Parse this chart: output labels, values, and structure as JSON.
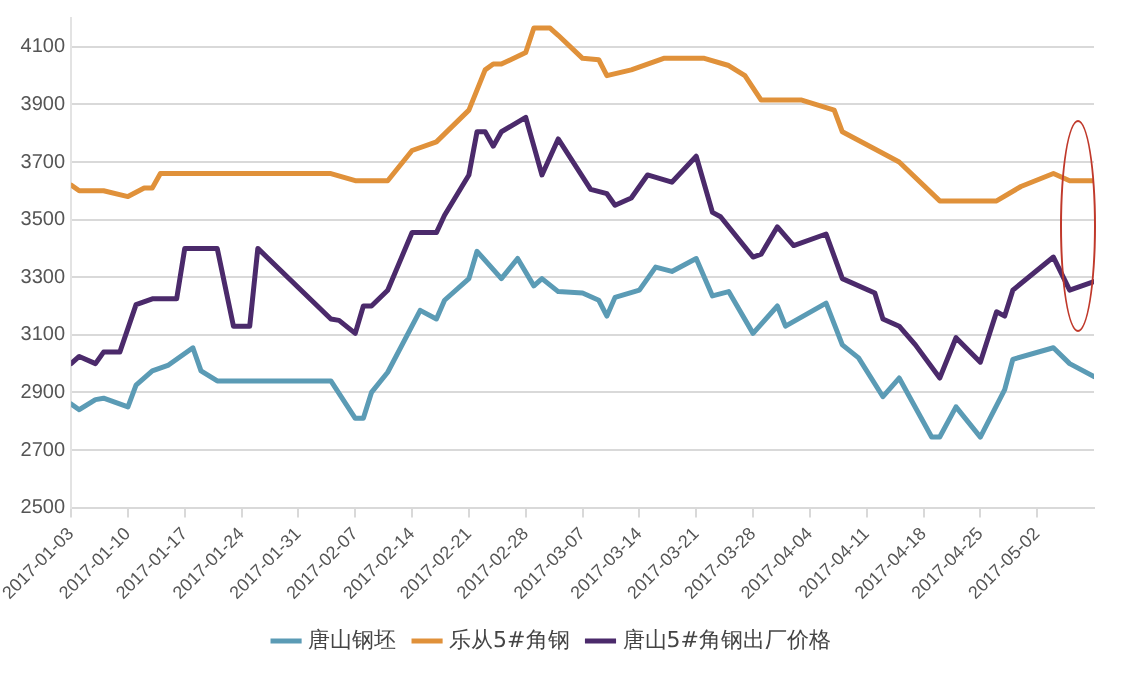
{
  "chart_data": {
    "type": "line",
    "ylim": [
      2500,
      4200
    ],
    "yticks": [
      2500,
      2700,
      2900,
      3100,
      3300,
      3500,
      3700,
      3900,
      4100
    ],
    "xlim": [
      "2017-01-03",
      "2017-05-09"
    ],
    "xticks": [
      "2017-01-03",
      "2017-01-10",
      "2017-01-17",
      "2017-01-24",
      "2017-01-31",
      "2017-02-07",
      "2017-02-14",
      "2017-02-21",
      "2017-02-28",
      "2017-03-07",
      "2017-03-14",
      "2017-03-21",
      "2017-03-28",
      "2017-04-04",
      "2017-04-11",
      "2017-04-18",
      "2017-04-25",
      "2017-05-02"
    ],
    "grid": "y",
    "legend": "bottom",
    "marker": "none",
    "line_style": "solid",
    "series": [
      {
        "name": "唐山钢坯",
        "color": "#5b9bb5",
        "x": [
          "2017-01-03",
          "2017-01-04",
          "2017-01-06",
          "2017-01-07",
          "2017-01-10",
          "2017-01-11",
          "2017-01-13",
          "2017-01-15",
          "2017-01-18",
          "2017-01-19",
          "2017-01-21",
          "2017-02-04",
          "2017-02-07",
          "2017-02-08",
          "2017-02-09",
          "2017-02-11",
          "2017-02-15",
          "2017-02-17",
          "2017-02-18",
          "2017-02-21",
          "2017-02-22",
          "2017-02-25",
          "2017-02-27",
          "2017-03-01",
          "2017-03-02",
          "2017-03-04",
          "2017-03-07",
          "2017-03-09",
          "2017-03-10",
          "2017-03-11",
          "2017-03-14",
          "2017-03-16",
          "2017-03-18",
          "2017-03-21",
          "2017-03-23",
          "2017-03-25",
          "2017-03-28",
          "2017-03-31",
          "2017-04-01",
          "2017-04-06",
          "2017-04-08",
          "2017-04-10",
          "2017-04-13",
          "2017-04-15",
          "2017-04-19",
          "2017-04-20",
          "2017-04-22",
          "2017-04-25",
          "2017-04-28",
          "2017-04-29",
          "2017-05-04",
          "2017-05-06",
          "2017-05-09"
        ],
        "values": [
          2860,
          2840,
          2875,
          2880,
          2850,
          2925,
          2975,
          2995,
          3055,
          2975,
          2940,
          2940,
          2810,
          2810,
          2900,
          2970,
          3185,
          3155,
          3220,
          3295,
          3390,
          3295,
          3365,
          3270,
          3295,
          3250,
          3245,
          3220,
          3165,
          3230,
          3255,
          3335,
          3320,
          3365,
          3235,
          3250,
          3105,
          3200,
          3130,
          3210,
          3065,
          3020,
          2885,
          2950,
          2745,
          2745,
          2850,
          2745,
          2910,
          3015,
          3055,
          3000,
          2955
        ]
      },
      {
        "name": "乐从5#角钢",
        "color": "#e0913a",
        "x": [
          "2017-01-03",
          "2017-01-04",
          "2017-01-07",
          "2017-01-10",
          "2017-01-12",
          "2017-01-13",
          "2017-01-14",
          "2017-02-04",
          "2017-02-07",
          "2017-02-11",
          "2017-02-14",
          "2017-02-17",
          "2017-02-21",
          "2017-02-23",
          "2017-02-24",
          "2017-02-25",
          "2017-02-28",
          "2017-03-01",
          "2017-03-03",
          "2017-03-04",
          "2017-03-07",
          "2017-03-09",
          "2017-03-10",
          "2017-03-13",
          "2017-03-17",
          "2017-03-22",
          "2017-03-25",
          "2017-03-27",
          "2017-03-29",
          "2017-04-03",
          "2017-04-07",
          "2017-04-08",
          "2017-04-12",
          "2017-04-15",
          "2017-04-20",
          "2017-04-27",
          "2017-04-30",
          "2017-05-04",
          "2017-05-06",
          "2017-05-09"
        ],
        "values": [
          3620,
          3600,
          3600,
          3580,
          3610,
          3610,
          3660,
          3660,
          3635,
          3635,
          3740,
          3770,
          3880,
          4020,
          4040,
          4040,
          4080,
          4165,
          4165,
          4140,
          4060,
          4055,
          4000,
          4020,
          4060,
          4060,
          4035,
          4000,
          3915,
          3915,
          3880,
          3805,
          3745,
          3700,
          3565,
          3565,
          3615,
          3660,
          3635,
          3635
        ]
      },
      {
        "name": "唐山5#角钢出厂价格",
        "color": "#4b2a6b",
        "x": [
          "2017-01-03",
          "2017-01-04",
          "2017-01-06",
          "2017-01-07",
          "2017-01-09",
          "2017-01-11",
          "2017-01-13",
          "2017-01-16",
          "2017-01-17",
          "2017-01-21",
          "2017-01-23",
          "2017-01-25",
          "2017-01-26",
          "2017-02-04",
          "2017-02-05",
          "2017-02-07",
          "2017-02-08",
          "2017-02-09",
          "2017-02-11",
          "2017-02-14",
          "2017-02-17",
          "2017-02-18",
          "2017-02-21",
          "2017-02-22",
          "2017-02-23",
          "2017-02-24",
          "2017-02-25",
          "2017-02-28",
          "2017-03-01",
          "2017-03-02",
          "2017-03-04",
          "2017-03-08",
          "2017-03-10",
          "2017-03-11",
          "2017-03-13",
          "2017-03-15",
          "2017-03-18",
          "2017-03-21",
          "2017-03-23",
          "2017-03-24",
          "2017-03-28",
          "2017-03-29",
          "2017-03-31",
          "2017-04-02",
          "2017-04-06",
          "2017-04-08",
          "2017-04-12",
          "2017-04-13",
          "2017-04-15",
          "2017-04-17",
          "2017-04-20",
          "2017-04-22",
          "2017-04-25",
          "2017-04-27",
          "2017-04-28",
          "2017-04-29",
          "2017-05-04",
          "2017-05-06",
          "2017-05-09"
        ],
        "values": [
          3000,
          3025,
          3000,
          3040,
          3040,
          3205,
          3225,
          3225,
          3400,
          3400,
          3130,
          3130,
          3400,
          3155,
          3150,
          3105,
          3200,
          3200,
          3255,
          3455,
          3455,
          3515,
          3655,
          3805,
          3805,
          3755,
          3805,
          3855,
          3755,
          3655,
          3780,
          3605,
          3590,
          3550,
          3575,
          3655,
          3630,
          3720,
          3525,
          3510,
          3370,
          3380,
          3475,
          3410,
          3450,
          3295,
          3245,
          3155,
          3130,
          3065,
          2950,
          3090,
          3005,
          3180,
          3165,
          3255,
          3370,
          3255,
          3285
        ]
      }
    ]
  }
}
